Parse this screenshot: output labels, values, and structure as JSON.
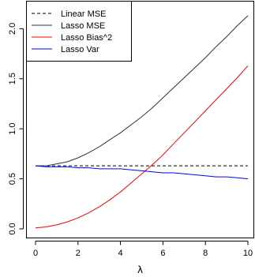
{
  "chart_data": {
    "type": "line",
    "title": "",
    "xlabel": "λ",
    "ylabel": "",
    "xlim": [
      0,
      10
    ],
    "ylim": [
      0,
      2.2
    ],
    "grid": false,
    "legend_position": "top-left",
    "x_ticks": [
      0,
      2,
      4,
      6,
      8,
      10
    ],
    "x_tick_labels": [
      "0",
      "2",
      "4",
      "6",
      "8",
      "10"
    ],
    "y_ticks": [
      0,
      0.5,
      1.0,
      1.5,
      2.0
    ],
    "y_tick_labels": [
      "0.0",
      "0.5",
      "1.0",
      "1.5",
      "2.0"
    ],
    "x": [
      0,
      0.5,
      1,
      1.5,
      2,
      2.5,
      3,
      3.5,
      4,
      4.5,
      5,
      5.5,
      6,
      6.5,
      7,
      7.5,
      8,
      8.5,
      9,
      9.5,
      10
    ],
    "series": [
      {
        "name": "Linear MSE",
        "color": "#000000",
        "dash": "dashed",
        "values": [
          0.63,
          0.63,
          0.63,
          0.63,
          0.63,
          0.63,
          0.63,
          0.63,
          0.63,
          0.63,
          0.63,
          0.63,
          0.63,
          0.63,
          0.63,
          0.63,
          0.63,
          0.63,
          0.63,
          0.63,
          0.63
        ]
      },
      {
        "name": "Lasso MSE",
        "color": "#333333",
        "dash": "solid",
        "values": [
          0.63,
          0.63,
          0.65,
          0.67,
          0.71,
          0.76,
          0.82,
          0.89,
          0.96,
          1.04,
          1.12,
          1.21,
          1.31,
          1.41,
          1.51,
          1.61,
          1.71,
          1.82,
          1.92,
          2.03,
          2.13
        ]
      },
      {
        "name": "Lasso Bias^2",
        "color": "#ff0000",
        "dash": "solid",
        "values": [
          0.01,
          0.02,
          0.04,
          0.07,
          0.11,
          0.16,
          0.22,
          0.29,
          0.37,
          0.46,
          0.55,
          0.64,
          0.74,
          0.85,
          0.96,
          1.07,
          1.18,
          1.29,
          1.4,
          1.51,
          1.63
        ]
      },
      {
        "name": "Lasso Var",
        "color": "#0000ff",
        "dash": "solid",
        "values": [
          0.63,
          0.62,
          0.62,
          0.62,
          0.61,
          0.61,
          0.6,
          0.6,
          0.6,
          0.59,
          0.58,
          0.57,
          0.56,
          0.56,
          0.55,
          0.54,
          0.53,
          0.52,
          0.52,
          0.51,
          0.5
        ]
      }
    ]
  }
}
